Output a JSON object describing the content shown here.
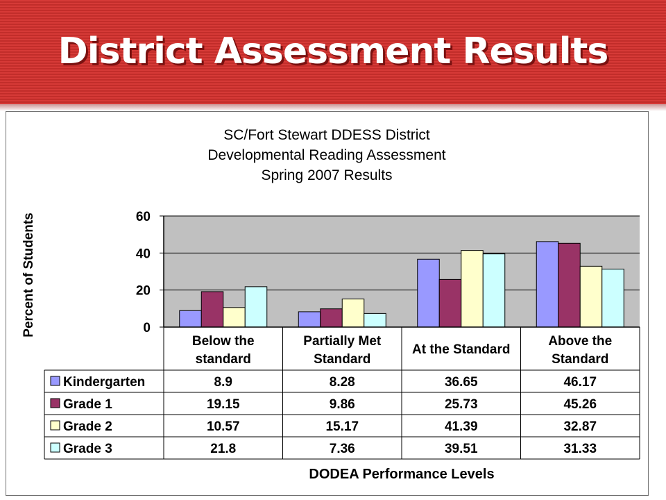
{
  "slide": {
    "title": "District Assessment Results"
  },
  "colors": {
    "banner": "#d63a37",
    "plot_bg": "#c0c0c0"
  },
  "chart_data": {
    "type": "bar",
    "title_lines": [
      "SC/Fort Stewart DDESS District",
      "Developmental Reading Assessment",
      "Spring 2007 Results"
    ],
    "ylabel": "Percent of Students",
    "xlabel": "DODEA Performance Levels",
    "ylim": [
      0,
      60
    ],
    "yticks": [
      0,
      20,
      40,
      60
    ],
    "grid": true,
    "legend": "data-table",
    "categories": [
      [
        "Below the",
        "standard"
      ],
      [
        "Partially Met",
        "Standard"
      ],
      [
        "At the Standard"
      ],
      [
        "Above the",
        "Standard"
      ]
    ],
    "series": [
      {
        "name": "Kindergarten",
        "color": "#9999ff",
        "values": [
          8.9,
          8.28,
          36.65,
          46.17
        ],
        "labels": [
          "8.9",
          "8.28",
          "36.65",
          "46.17"
        ]
      },
      {
        "name": "Grade 1",
        "color": "#993366",
        "values": [
          19.15,
          9.86,
          25.73,
          45.26
        ],
        "labels": [
          "19.15",
          "9.86",
          "25.73",
          "45.26"
        ]
      },
      {
        "name": "Grade 2",
        "color": "#ffffcc",
        "values": [
          10.57,
          15.17,
          41.39,
          32.87
        ],
        "labels": [
          "10.57",
          "15.17",
          "41.39",
          "32.87"
        ]
      },
      {
        "name": "Grade 3",
        "color": "#ccffff",
        "values": [
          21.8,
          7.36,
          39.51,
          31.33
        ],
        "labels": [
          "21.8",
          "7.36",
          "39.51",
          "31.33"
        ]
      }
    ]
  }
}
